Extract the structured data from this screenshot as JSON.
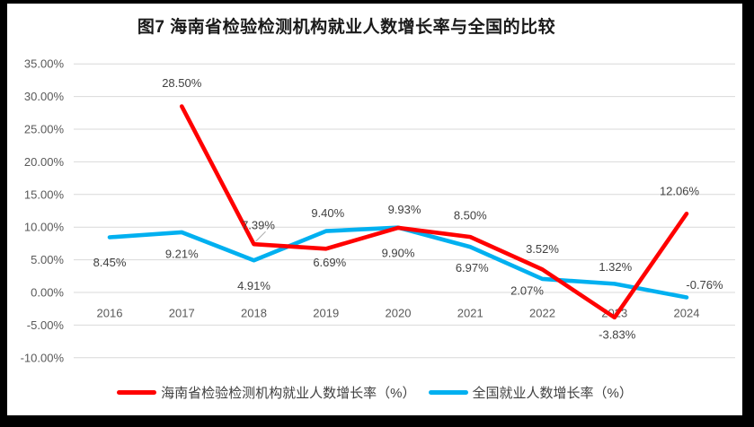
{
  "chart_data": {
    "type": "line",
    "title": "图7 海南省检验检测机构就业人数增长率与全国的比较",
    "categories": [
      "2016",
      "2017",
      "2018",
      "2019",
      "2020",
      "2021",
      "2022",
      "2023",
      "2024"
    ],
    "series": [
      {
        "name": "海南省检验检测机构就业人数增长率（%）",
        "color": "#FF0000",
        "values": [
          null,
          28.5,
          7.39,
          6.69,
          9.9,
          8.5,
          3.52,
          -3.83,
          12.06
        ],
        "labels": [
          "",
          "28.50%",
          "7.39%",
          "6.69%",
          "9.90%",
          "8.50%",
          "3.52%",
          "-3.83%",
          "12.06%"
        ]
      },
      {
        "name": "全国就业人数增长率（%）",
        "color": "#00B0F0",
        "values": [
          8.45,
          9.21,
          4.91,
          9.4,
          9.93,
          6.97,
          2.07,
          1.32,
          -0.76
        ],
        "labels": [
          "8.45%",
          "9.21%",
          "4.91%",
          "9.40%",
          "9.93%",
          "6.97%",
          "2.07%",
          "1.32%",
          "-0.76%"
        ]
      }
    ],
    "y_axis": {
      "min": -10,
      "max": 35,
      "step": 5,
      "ticks": [
        "35.00%",
        "30.00%",
        "25.00%",
        "20.00%",
        "15.00%",
        "10.00%",
        "5.00%",
        "0.00%",
        "-5.00%",
        "-10.00%"
      ]
    },
    "x_axis": {
      "label_position": "at-zero-line"
    },
    "grid": true,
    "legend_position": "bottom",
    "colors": {
      "gridline": "#D9D9D9",
      "axis_text": "#595959",
      "data_label": "#404040",
      "leader_line": "#A6A6A6",
      "panel_background": "#FFFFFF",
      "page_background": "#000000",
      "title_text": "#1A1A1A"
    }
  }
}
